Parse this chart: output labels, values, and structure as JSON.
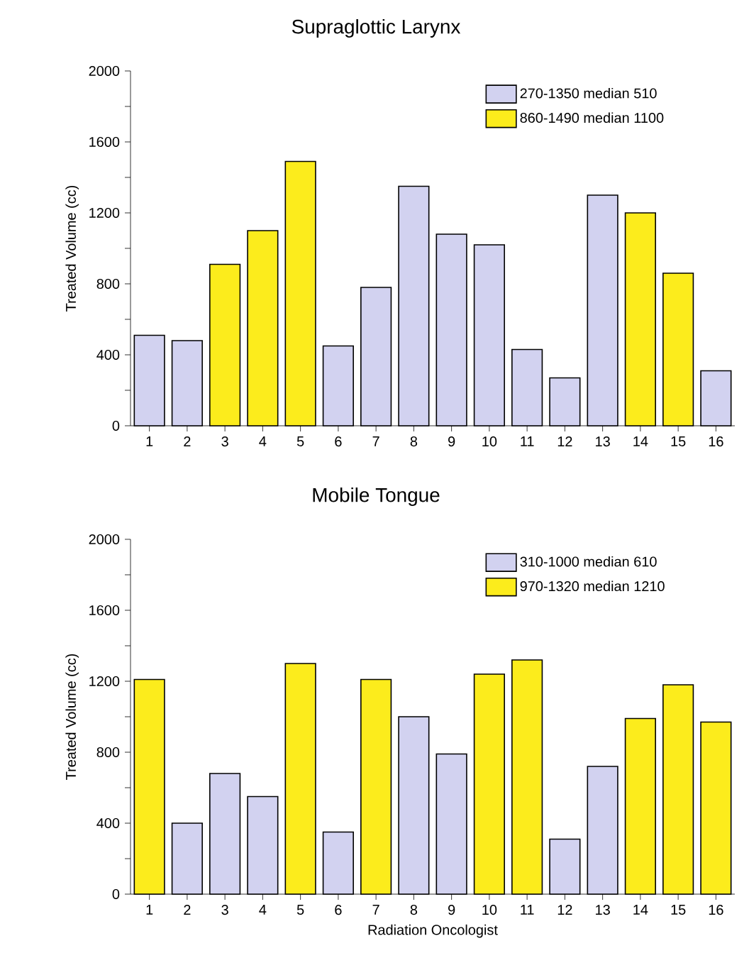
{
  "chart_data": [
    {
      "type": "bar",
      "title": "Supraglottic Larynx",
      "ylabel": "Treated Volume (cc)",
      "categories": [
        "1",
        "2",
        "3",
        "4",
        "5",
        "6",
        "7",
        "8",
        "9",
        "10",
        "11",
        "12",
        "13",
        "14",
        "15",
        "16"
      ],
      "series": [
        {
          "name": "270-1350 median 510",
          "color": "#d2d2f0",
          "values": [
            510,
            480,
            null,
            null,
            null,
            450,
            780,
            1350,
            1080,
            1020,
            430,
            270,
            1300,
            null,
            null,
            310
          ]
        },
        {
          "name": "860-1490 median 1100",
          "color": "#fcec1c",
          "values": [
            null,
            null,
            910,
            1100,
            1490,
            null,
            null,
            null,
            null,
            null,
            null,
            null,
            null,
            1200,
            860,
            null
          ]
        }
      ],
      "ylim": [
        0,
        2000
      ],
      "yticks": [
        0,
        {
          "value": 200,
          "label": null
        },
        400,
        {
          "value": 600,
          "label": null
        },
        800,
        {
          "value": 1000,
          "label": null
        },
        1200,
        {
          "value": 1400,
          "label": null
        },
        1600,
        {
          "value": 1800,
          "label": null
        },
        2000
      ],
      "legend": "top right"
    },
    {
      "type": "bar",
      "title": "Mobile Tongue",
      "ylabel": "Treated Volume (cc)",
      "xlabel": "Radiation Oncologist",
      "categories": [
        "1",
        "2",
        "3",
        "4",
        "5",
        "6",
        "7",
        "8",
        "9",
        "10",
        "11",
        "12",
        "13",
        "14",
        "15",
        "16"
      ],
      "series": [
        {
          "name": "310-1000 median 610",
          "color": "#d2d2f0",
          "values": [
            null,
            400,
            680,
            550,
            null,
            350,
            null,
            1000,
            790,
            null,
            null,
            310,
            720,
            null,
            null,
            null
          ]
        },
        {
          "name": "970-1320 median 1210",
          "color": "#fcec1c",
          "values": [
            1210,
            null,
            null,
            null,
            1300,
            null,
            1210,
            null,
            null,
            1240,
            1320,
            null,
            null,
            990,
            1180,
            970
          ]
        }
      ],
      "ylim": [
        0,
        2000
      ],
      "yticks": [
        0,
        {
          "value": 200,
          "label": null
        },
        400,
        {
          "value": 600,
          "label": null
        },
        800,
        {
          "value": 1000,
          "label": null
        },
        1200,
        {
          "value": 1400,
          "label": null
        },
        1600,
        {
          "value": 1800,
          "label": null
        },
        2000
      ],
      "legend": "top right"
    }
  ]
}
